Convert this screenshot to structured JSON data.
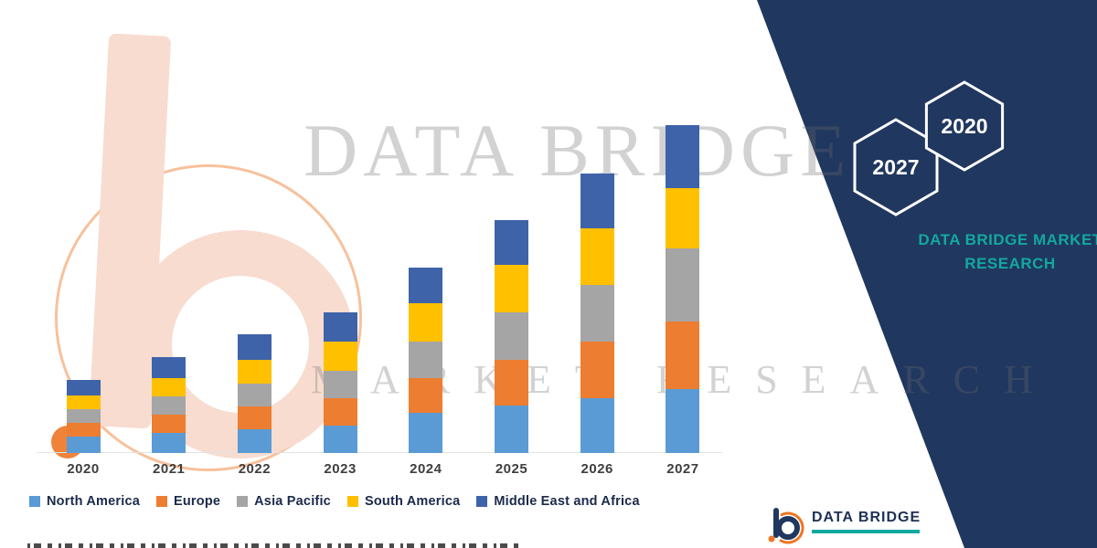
{
  "brand_panel": {
    "navy_color": "#20375f",
    "teal_color": "#13a89e",
    "hexagons": [
      {
        "label": "2027"
      },
      {
        "label": "2020"
      }
    ],
    "tagline_line1": "DATA BRIDGE MARKET",
    "tagline_line2": "RESEARCH"
  },
  "watermark": {
    "line1": "DATA BRIDGE",
    "line2": "MARKET RESEARCH"
  },
  "footer_logo": {
    "name": "DATA BRIDGE"
  },
  "chart_data": {
    "type": "bar",
    "stacked": true,
    "title": "",
    "xlabel": "",
    "ylabel": "",
    "value_unit": "relative market size (no value axis shown in figure)",
    "legend_position": "bottom",
    "grid": false,
    "categories": [
      "2020",
      "2021",
      "2022",
      "2023",
      "2024",
      "2025",
      "2026",
      "2027"
    ],
    "series": [
      {
        "name": "North America",
        "color": "#5b9bd5",
        "values": [
          18,
          22,
          26,
          30,
          44,
          52,
          60,
          70
        ]
      },
      {
        "name": "Europe",
        "color": "#ed7d31",
        "values": [
          15,
          20,
          25,
          30,
          38,
          50,
          62,
          74
        ]
      },
      {
        "name": "Asia Pacific",
        "color": "#a5a5a5",
        "values": [
          15,
          20,
          25,
          30,
          40,
          52,
          62,
          80
        ]
      },
      {
        "name": "South America",
        "color": "#ffc000",
        "values": [
          15,
          20,
          26,
          32,
          42,
          52,
          62,
          66
        ]
      },
      {
        "name": "Middle East and Africa",
        "color": "#3e63a8",
        "values": [
          17,
          23,
          28,
          32,
          39,
          49,
          60,
          69
        ]
      }
    ],
    "totals": [
      80,
      105,
      130,
      154,
      203,
      255,
      306,
      359
    ]
  }
}
